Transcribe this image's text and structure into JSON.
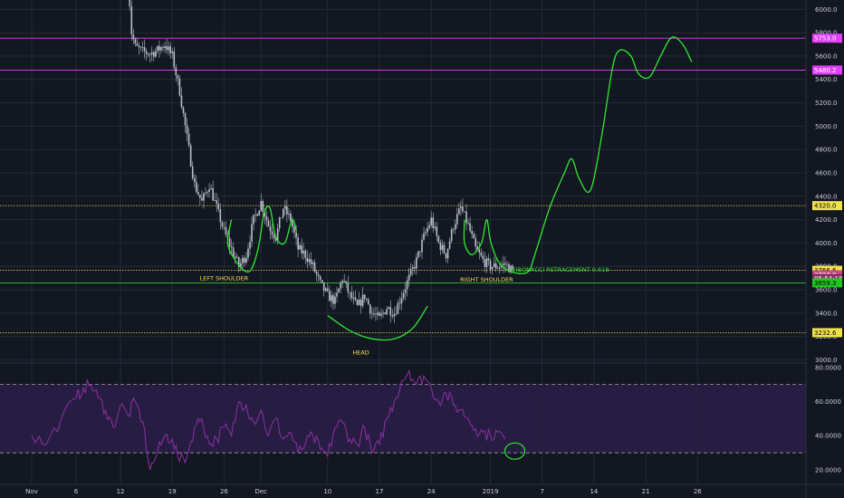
{
  "colors": {
    "background": "#131722",
    "grid": "#1f2b3a",
    "candle": "#b9bec8",
    "magenta": "#e040fb",
    "yellow": "#f0e24a",
    "green": "#2ee82e",
    "rsi": "#8e2fa6",
    "rsi_band": "#2b1f48"
  },
  "chart_data": [
    {
      "type": "candlestick",
      "price_axis": {
        "ticks": [
          "6000.0",
          "5800.0",
          "5600.0",
          "5400.0",
          "5200.0",
          "5000.0",
          "4800.0",
          "4600.0",
          "4400.0",
          "4200.0",
          "4000.0",
          "3800.0",
          "3600.0",
          "3400.0",
          "3200.0",
          "3000.0"
        ],
        "range": [
          2980,
          6080
        ]
      },
      "time_axis": {
        "ticks": [
          "Nov",
          "6",
          "12",
          "19",
          "26",
          "Dec",
          "10",
          "17",
          "24",
          "2019",
          "7",
          "14",
          "21",
          "26"
        ],
        "tick_index": [
          0,
          6,
          12,
          19,
          26,
          31,
          40,
          47,
          54,
          62,
          69,
          76,
          83,
          90
        ]
      },
      "price_path": [
        [
          13,
          6300
        ],
        [
          13.5,
          5800
        ],
        [
          14,
          5680
        ],
        [
          15,
          5640
        ],
        [
          16,
          5620
        ],
        [
          17,
          5650
        ],
        [
          18,
          5700
        ],
        [
          19,
          5600
        ],
        [
          20,
          5300
        ],
        [
          21,
          4900
        ],
        [
          22,
          4500
        ],
        [
          23,
          4350
        ],
        [
          24,
          4500
        ],
        [
          25,
          4300
        ],
        [
          26,
          4100
        ],
        [
          27,
          3950
        ],
        [
          28,
          3800
        ],
        [
          29,
          3900
        ],
        [
          30,
          4200
        ],
        [
          31,
          4350
        ],
        [
          32,
          4150
        ],
        [
          33,
          4050
        ],
        [
          34,
          4300
        ],
        [
          35,
          4200
        ],
        [
          36,
          3950
        ],
        [
          37,
          3900
        ],
        [
          38,
          3800
        ],
        [
          39,
          3650
        ],
        [
          40,
          3550
        ],
        [
          41,
          3500
        ],
        [
          42,
          3700
        ],
        [
          43,
          3550
        ],
        [
          44,
          3450
        ],
        [
          45,
          3550
        ],
        [
          46,
          3400
        ],
        [
          47,
          3350
        ],
        [
          48,
          3450
        ],
        [
          49,
          3400
        ],
        [
          50,
          3550
        ],
        [
          51,
          3700
        ],
        [
          52,
          3850
        ],
        [
          53,
          4050
        ],
        [
          54,
          4200
        ],
        [
          55,
          4000
        ],
        [
          56,
          3900
        ],
        [
          57,
          4150
        ],
        [
          58,
          4300
        ],
        [
          59,
          4150
        ],
        [
          60,
          3950
        ],
        [
          61,
          3850
        ],
        [
          62,
          3800
        ],
        [
          63,
          3800
        ],
        [
          64,
          3820
        ],
        [
          65,
          3760
        ]
      ],
      "horizontal_levels": [
        {
          "price": 5753.0,
          "label": "5753.0",
          "color": "magenta"
        },
        {
          "price": 5480.2,
          "label": "5480.2",
          "color": "magenta"
        },
        {
          "price": 4320.0,
          "label": "4320.0",
          "color": "yellow"
        },
        {
          "price": 3766.6,
          "label": "3766.6",
          "color": "yellow"
        },
        {
          "price": 3659.3,
          "color": "green",
          "style": "solid"
        },
        {
          "price": 3232.6,
          "label": "3232.6",
          "color": "yellow"
        }
      ],
      "price_tags": [
        {
          "price": 3727.8,
          "label": "3727.8",
          "bg": "#c74a8a"
        },
        {
          "price": 3695,
          "label": "05:54:18",
          "bg": "#8a2e60"
        },
        {
          "price": 3659.3,
          "label": "3659.3",
          "bg": "#22c322",
          "text": "#000000"
        }
      ],
      "annotations": [
        {
          "text": "LEFT SHOULDER",
          "x": 26,
          "price": 3680,
          "color": "#f0e24a"
        },
        {
          "text": "HEAD",
          "x": 44.5,
          "price": 3045,
          "color": "#f0e24a"
        },
        {
          "text": "RIGHT SHOULDER",
          "x": 61.5,
          "price": 3670,
          "color": "#f0e24a"
        },
        {
          "text": "FIBONACCI RETRACEMENT 0.618",
          "x": 71.5,
          "price": 3755,
          "color": "#2ee82e"
        }
      ],
      "drawn_paths": [
        [
          [
            27,
            4200
          ],
          [
            26.5,
            3990
          ],
          [
            28,
            3810
          ],
          [
            29.5,
            3760
          ],
          [
            30.6,
            3950
          ],
          [
            31.4,
            4250
          ],
          [
            32.2,
            4300
          ],
          [
            33,
            4050
          ],
          [
            34.2,
            4000
          ],
          [
            35.2,
            4200
          ],
          [
            35.8,
            4100
          ]
        ],
        [
          [
            40,
            3380
          ],
          [
            43,
            3250
          ],
          [
            46,
            3180
          ],
          [
            49,
            3180
          ],
          [
            51.5,
            3270
          ],
          [
            53.5,
            3460
          ]
        ],
        [
          [
            58.5,
            4200
          ],
          [
            58.5,
            4000
          ],
          [
            59.5,
            3900
          ],
          [
            60.8,
            4000
          ],
          [
            61.5,
            4200
          ],
          [
            62,
            4020
          ],
          [
            63,
            3850
          ],
          [
            64.5,
            3760
          ],
          [
            67,
            3750
          ],
          [
            68,
            3900
          ],
          [
            70,
            4300
          ],
          [
            72,
            4600
          ],
          [
            73,
            4720
          ],
          [
            74,
            4550
          ],
          [
            75.5,
            4450
          ],
          [
            77,
            4900
          ],
          [
            78.5,
            5500
          ],
          [
            79.5,
            5650
          ],
          [
            81,
            5600
          ],
          [
            82,
            5450
          ],
          [
            83.5,
            5420
          ],
          [
            85,
            5600
          ],
          [
            86.5,
            5760
          ],
          [
            88,
            5700
          ],
          [
            89.2,
            5550
          ]
        ]
      ]
    },
    {
      "type": "line",
      "name": "RSI",
      "y_axis": {
        "ticks": [
          "80.0000",
          "60.0000",
          "40.0000",
          "20.0000"
        ],
        "range": [
          12,
          82
        ]
      },
      "band": [
        30,
        70
      ],
      "points": [
        [
          0,
          40
        ],
        [
          2,
          35
        ],
        [
          4,
          50
        ],
        [
          6,
          62
        ],
        [
          7,
          68
        ],
        [
          8,
          70
        ],
        [
          9,
          62
        ],
        [
          10,
          55
        ],
        [
          11,
          45
        ],
        [
          12,
          58
        ],
        [
          13,
          52
        ],
        [
          14,
          60
        ],
        [
          15,
          48
        ],
        [
          16,
          20
        ],
        [
          17,
          30
        ],
        [
          18,
          40
        ],
        [
          19,
          38
        ],
        [
          20,
          25
        ],
        [
          21,
          28
        ],
        [
          22,
          45
        ],
        [
          23,
          50
        ],
        [
          24,
          35
        ],
        [
          25,
          38
        ],
        [
          26,
          45
        ],
        [
          27,
          40
        ],
        [
          28,
          60
        ],
        [
          29,
          58
        ],
        [
          30,
          48
        ],
        [
          31,
          55
        ],
        [
          32,
          40
        ],
        [
          33,
          50
        ],
        [
          34,
          38
        ],
        [
          35,
          42
        ],
        [
          36,
          30
        ],
        [
          37,
          35
        ],
        [
          38,
          40
        ],
        [
          39,
          32
        ],
        [
          40,
          28
        ],
        [
          41,
          45
        ],
        [
          42,
          48
        ],
        [
          43,
          38
        ],
        [
          44,
          35
        ],
        [
          45,
          45
        ],
        [
          46,
          30
        ],
        [
          47,
          35
        ],
        [
          48,
          50
        ],
        [
          49,
          60
        ],
        [
          50,
          72
        ],
        [
          51,
          78
        ],
        [
          52,
          70
        ],
        [
          53,
          75
        ],
        [
          54,
          68
        ],
        [
          55,
          60
        ],
        [
          56,
          65
        ],
        [
          57,
          58
        ],
        [
          58,
          55
        ],
        [
          59,
          50
        ],
        [
          60,
          44
        ],
        [
          61,
          42
        ],
        [
          62,
          40
        ],
        [
          63,
          42
        ],
        [
          64,
          38
        ]
      ]
    }
  ]
}
